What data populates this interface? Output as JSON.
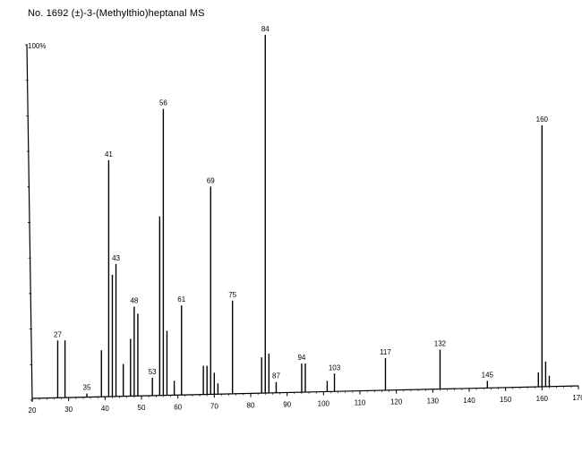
{
  "title": "No. 1692 (±)-3-(Methylthio)heptanal MS",
  "chart_data": {
    "type": "bar",
    "title": "No. 1692 (±)-3-(Methylthio)heptanal MS",
    "y_max_label": "100%",
    "xlim": [
      20,
      170
    ],
    "ylim": [
      0,
      100
    ],
    "x_ticks": [
      20,
      30,
      40,
      50,
      60,
      70,
      80,
      90,
      100,
      110,
      120,
      130,
      140,
      150,
      160,
      170
    ],
    "grid": false,
    "peaks": [
      {
        "mz": 27,
        "intensity": 16
      },
      {
        "mz": 29,
        "intensity": 16
      },
      {
        "mz": 35,
        "intensity": 1
      },
      {
        "mz": 39,
        "intensity": 13
      },
      {
        "mz": 41,
        "intensity": 66
      },
      {
        "mz": 42,
        "intensity": 34
      },
      {
        "mz": 43,
        "intensity": 37
      },
      {
        "mz": 45,
        "intensity": 9
      },
      {
        "mz": 47,
        "intensity": 16
      },
      {
        "mz": 48,
        "intensity": 25
      },
      {
        "mz": 49,
        "intensity": 23
      },
      {
        "mz": 53,
        "intensity": 5
      },
      {
        "mz": 55,
        "intensity": 50
      },
      {
        "mz": 56,
        "intensity": 80
      },
      {
        "mz": 57,
        "intensity": 18
      },
      {
        "mz": 59,
        "intensity": 4
      },
      {
        "mz": 61,
        "intensity": 25
      },
      {
        "mz": 67,
        "intensity": 8
      },
      {
        "mz": 68,
        "intensity": 8
      },
      {
        "mz": 69,
        "intensity": 58
      },
      {
        "mz": 70,
        "intensity": 6
      },
      {
        "mz": 71,
        "intensity": 3
      },
      {
        "mz": 75,
        "intensity": 26
      },
      {
        "mz": 83,
        "intensity": 10
      },
      {
        "mz": 84,
        "intensity": 100
      },
      {
        "mz": 85,
        "intensity": 11
      },
      {
        "mz": 87,
        "intensity": 3
      },
      {
        "mz": 94,
        "intensity": 8
      },
      {
        "mz": 95,
        "intensity": 8
      },
      {
        "mz": 101,
        "intensity": 3
      },
      {
        "mz": 103,
        "intensity": 5
      },
      {
        "mz": 117,
        "intensity": 9
      },
      {
        "mz": 132,
        "intensity": 11
      },
      {
        "mz": 145,
        "intensity": 2
      },
      {
        "mz": 159,
        "intensity": 4
      },
      {
        "mz": 160,
        "intensity": 73
      },
      {
        "mz": 161,
        "intensity": 7
      },
      {
        "mz": 162,
        "intensity": 3
      }
    ],
    "labeled_peaks": [
      27,
      35,
      41,
      43,
      48,
      53,
      56,
      61,
      69,
      75,
      84,
      87,
      94,
      103,
      117,
      132,
      145,
      160
    ]
  }
}
